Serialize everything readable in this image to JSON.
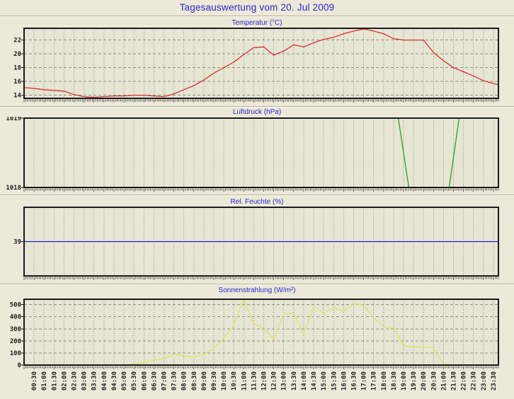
{
  "title": "Tagesauswertung vom 20. Jul 2009",
  "colors": {
    "page_bg": "#ece9d8",
    "plot_bg": "#e7e6d5",
    "grid": "#90907e",
    "border": "#1a1a1a",
    "heading_text": "#2828cc",
    "axis_text": "#1c1c1c",
    "temperature_line": "#d42f2f",
    "pressure_line": "#2aa02a",
    "humidity_line": "#2020c0",
    "solar_line": "#e3e06c"
  },
  "time_axis": {
    "start_min": 30,
    "step_min": 30,
    "domain_min": [
      0,
      1425
    ],
    "labels": [
      "00:30",
      "01:00",
      "01:30",
      "02:00",
      "02:30",
      "03:00",
      "03:30",
      "04:00",
      "04:30",
      "05:00",
      "05:30",
      "06:00",
      "06:30",
      "07:00",
      "07:30",
      "08:00",
      "08:30",
      "09:00",
      "09:30",
      "10:00",
      "10:30",
      "11:00",
      "11:30",
      "12:00",
      "12:30",
      "13:00",
      "13:30",
      "14:00",
      "14:30",
      "15:00",
      "15:30",
      "16:00",
      "16:30",
      "17:00",
      "17:30",
      "18:00",
      "18:30",
      "19:00",
      "19:30",
      "20:00",
      "20:30",
      "21:00",
      "21:30",
      "22:00",
      "22:30",
      "23:00",
      "23:30"
    ]
  },
  "chart_data": [
    {
      "type": "line",
      "title": "Temperatur (°C)",
      "color_key": "temperature_line",
      "ylim": [
        13.55,
        23.7
      ],
      "yticks": [
        14,
        16,
        18,
        20,
        22
      ],
      "grid": true,
      "edge_start": 15.1,
      "edge_end": 15.5,
      "values": [
        15.0,
        14.8,
        14.7,
        14.6,
        14.1,
        13.8,
        13.7,
        13.8,
        13.9,
        13.9,
        14.0,
        14.0,
        13.9,
        13.8,
        14.2,
        14.8,
        15.4,
        16.2,
        17.2,
        18.0,
        18.8,
        19.9,
        20.9,
        21.0,
        19.8,
        20.4,
        21.3,
        21.0,
        21.6,
        22.1,
        22.4,
        22.9,
        23.3,
        23.6,
        23.3,
        22.9,
        22.2,
        22.0,
        22.0,
        22.0,
        20.2,
        19.0,
        18.0,
        17.4,
        16.8,
        16.1,
        15.7
      ]
    },
    {
      "type": "line",
      "title": "Luftdruck (hPa)",
      "color_key": "pressure_line",
      "ylim": [
        1018,
        1019
      ],
      "yticks": [
        1018,
        1019
      ],
      "grid": true,
      "points": [
        [
          0,
          1019
        ],
        [
          1124,
          1019
        ],
        [
          1156,
          1018
        ],
        [
          1277,
          1018
        ],
        [
          1307,
          1019
        ],
        [
          1425,
          1019
        ]
      ]
    },
    {
      "type": "line",
      "title": "Rel. Feuchte (%)",
      "color_key": "humidity_line",
      "ylim": [
        19.5,
        58.5
      ],
      "yticks": [
        39
      ],
      "grid": true,
      "points": [
        [
          0,
          39
        ],
        [
          1425,
          39
        ]
      ]
    },
    {
      "type": "line",
      "title": "Sonnenstrahlung (W/m²)",
      "color_key": "solar_line",
      "ylim": [
        0,
        545
      ],
      "yticks": [
        0,
        100,
        200,
        300,
        400,
        500
      ],
      "grid": true,
      "edge_start": 0,
      "edge_end": 0,
      "values": [
        0,
        0,
        0,
        0,
        0,
        0,
        0,
        0,
        0,
        0,
        10,
        20,
        40,
        55,
        90,
        75,
        65,
        85,
        140,
        220,
        330,
        545,
        340,
        310,
        215,
        420,
        430,
        250,
        490,
        430,
        475,
        445,
        510,
        495,
        390,
        320,
        305,
        160,
        150,
        150,
        140,
        10,
        0,
        0,
        0,
        0,
        0
      ]
    }
  ]
}
